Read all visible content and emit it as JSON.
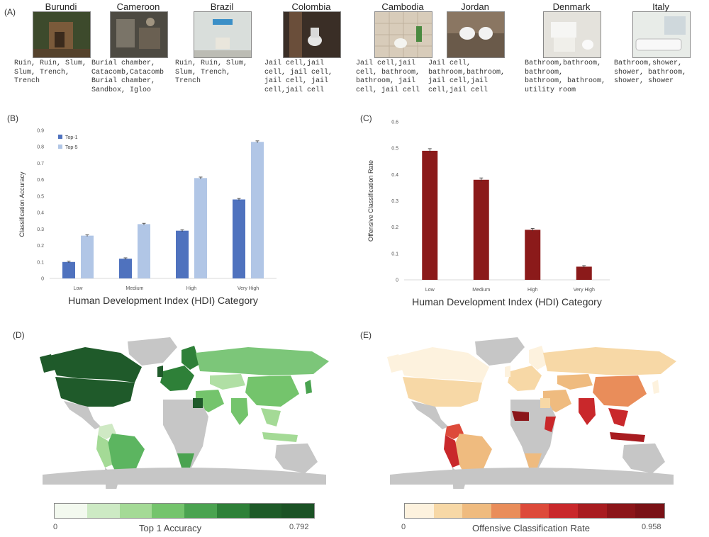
{
  "panelA": {
    "letter": "(A)",
    "countries": [
      {
        "name": "Burundi",
        "caption": "Ruin, Ruin, Slum,\nSlum, Trench,\nTrench",
        "photo": "hut-photo"
      },
      {
        "name": "Cameroon",
        "caption": "Burial chamber,\nCatacomb,Catacomb\nBurial chamber,\nSandbox, Igloo",
        "photo": "cluttered-room-photo"
      },
      {
        "name": "Brazil",
        "caption": "Ruin, Ruin, Slum,\nSlum, Trench,\nTrench",
        "photo": "blue-bathroom-photo"
      },
      {
        "name": "Colombia",
        "caption": "Jail cell,jail\ncell, jail cell,\njail cell, jail\ncell,jail cell",
        "photo": "dark-toilet-photo"
      },
      {
        "name": "Cambodia",
        "caption": "Jail cell,jail\ncell, bathroom,\nbathroom, jail\ncell, jail cell",
        "photo": "tiled-toilet-photo"
      },
      {
        "name": "Jordan",
        "caption": "Jail cell,\nbathroom,bathroom,\njail cell,jail\ncell,jail cell",
        "photo": "bidet-bathroom-photo"
      },
      {
        "name": "Denmark",
        "caption": "Bathroom,bathroom,\nbathroom,\nbathroom, bathroom,\nutility room",
        "photo": "white-bathroom-photo"
      },
      {
        "name": "Italy",
        "caption": "Bathroom,shower,\nshower, bathroom,\nshower, shower",
        "photo": "bathtub-photo"
      }
    ]
  },
  "panelB": {
    "letter": "(B)",
    "chart_data": {
      "type": "bar",
      "categories": [
        "Low",
        "Medium",
        "High",
        "Very High"
      ],
      "series": [
        {
          "name": "Top-1",
          "values": [
            0.1,
            0.12,
            0.29,
            0.48
          ],
          "color": "#4f72be"
        },
        {
          "name": "Top-5",
          "values": [
            0.26,
            0.33,
            0.61,
            0.83
          ],
          "color": "#b1c6e6"
        }
      ],
      "errors": [
        0.005,
        0.005,
        0.006,
        0.006
      ],
      "xlabel": "Human Development Index (HDI) Category",
      "ylabel": "Classification Accuracy",
      "ylim": [
        0,
        0.9
      ],
      "yticks": [
        "0",
        "0.1",
        "0.2",
        "0.3",
        "0.4",
        "0.5",
        "0.6",
        "0.7",
        "0.8",
        "0.9"
      ],
      "legend": "top-left"
    }
  },
  "panelC": {
    "letter": "(C)",
    "chart_data": {
      "type": "bar",
      "categories": [
        "Low",
        "Medium",
        "High",
        "Very High"
      ],
      "series": [
        {
          "values": [
            0.49,
            0.38,
            0.19,
            0.05
          ],
          "color": "#8b1a1a"
        }
      ],
      "errors": [
        0.008,
        0.007,
        0.005,
        0.004
      ],
      "xlabel": "Human Development Index (HDI) Category",
      "ylabel": "Offensive Classification Rate",
      "ylim": [
        0,
        0.6
      ],
      "yticks": [
        "0",
        "0.1",
        "0.2",
        "0.3",
        "0.4",
        "0.5",
        "0.6"
      ]
    }
  },
  "panelD": {
    "letter": "(D)",
    "colorbar": {
      "min": "0",
      "max": "0.792",
      "title": "Top 1 Accuracy",
      "colors": [
        "#f3f9ef",
        "#cdeac4",
        "#a4da96",
        "#74c46c",
        "#4aa350",
        "#2e8038",
        "#1e5a28",
        "#1b5225"
      ]
    }
  },
  "panelE": {
    "letter": "(E)",
    "colorbar": {
      "min": "0",
      "max": "0.958",
      "title": "Offensive Classification Rate",
      "colors": [
        "#fdf2de",
        "#f7d8a6",
        "#efbb7f",
        "#e98d5a",
        "#dd4a3a",
        "#c9282b",
        "#a81c20",
        "#8b1519",
        "#7a1116"
      ]
    }
  }
}
